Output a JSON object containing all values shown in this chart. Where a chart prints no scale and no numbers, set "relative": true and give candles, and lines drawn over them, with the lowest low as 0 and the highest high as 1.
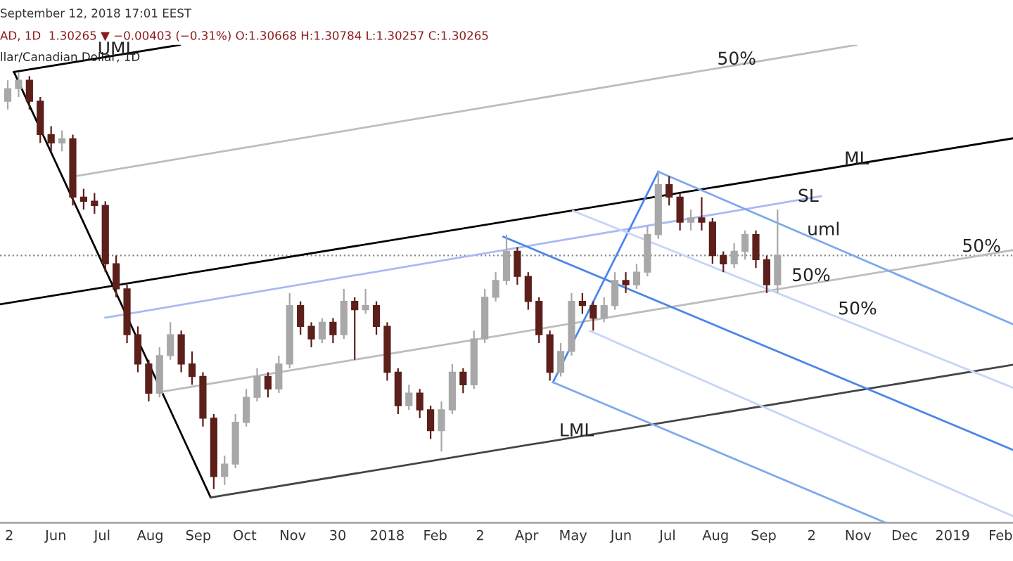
{
  "chart_data": {
    "type": "candlestick",
    "relative": true,
    "title": "AD, 1D  1.30265 ▼ −0.00403 (−0.31%) O:1.30668 H:1.30784 L:1.30257 C:1.30265",
    "subtitle": "llar/Canadian Dollar, 1D",
    "x": [
      "2017-05-01",
      "2017-05-08",
      "2017-05-15",
      "2017-05-22",
      "2017-05-29",
      "2017-06-05",
      "2017-06-12",
      "2017-06-19",
      "2017-06-26",
      "2017-07-03",
      "2017-07-10",
      "2017-07-17",
      "2017-07-24",
      "2017-07-31",
      "2017-08-07",
      "2017-08-14",
      "2017-08-21",
      "2017-08-28",
      "2017-09-04",
      "2017-09-11",
      "2017-09-18",
      "2017-09-25",
      "2017-10-02",
      "2017-10-09",
      "2017-10-16",
      "2017-10-23",
      "2017-10-30",
      "2017-11-06",
      "2017-11-13",
      "2017-11-20",
      "2017-11-27",
      "2017-12-04",
      "2017-12-11",
      "2017-12-18",
      "2017-12-25",
      "2018-01-01",
      "2018-01-08",
      "2018-01-15",
      "2018-01-22",
      "2018-01-29",
      "2018-02-05",
      "2018-02-12",
      "2018-02-19",
      "2018-02-26",
      "2018-03-05",
      "2018-03-12",
      "2018-03-19",
      "2018-03-26",
      "2018-04-02",
      "2018-04-09",
      "2018-04-16",
      "2018-04-23",
      "2018-04-30",
      "2018-05-07",
      "2018-05-14",
      "2018-05-21",
      "2018-05-28",
      "2018-06-04",
      "2018-06-11",
      "2018-06-18",
      "2018-06-25",
      "2018-07-02",
      "2018-07-09",
      "2018-07-16",
      "2018-07-23",
      "2018-07-30",
      "2018-08-06",
      "2018-08-13",
      "2018-08-20",
      "2018-08-27",
      "2018-09-03",
      "2018-09-10"
    ],
    "ohlc": [
      [
        0.93,
        0.98,
        0.91,
        0.96
      ],
      [
        0.96,
        1.0,
        0.94,
        0.98
      ],
      [
        0.98,
        0.99,
        0.91,
        0.93
      ],
      [
        0.93,
        0.94,
        0.83,
        0.85
      ],
      [
        0.85,
        0.87,
        0.81,
        0.83
      ],
      [
        0.83,
        0.86,
        0.81,
        0.84
      ],
      [
        0.84,
        0.85,
        0.68,
        0.7
      ],
      [
        0.7,
        0.72,
        0.67,
        0.69
      ],
      [
        0.69,
        0.71,
        0.66,
        0.68
      ],
      [
        0.68,
        0.69,
        0.52,
        0.54
      ],
      [
        0.54,
        0.56,
        0.46,
        0.48
      ],
      [
        0.48,
        0.49,
        0.35,
        0.37
      ],
      [
        0.37,
        0.39,
        0.28,
        0.3
      ],
      [
        0.3,
        0.31,
        0.21,
        0.23
      ],
      [
        0.23,
        0.34,
        0.22,
        0.32
      ],
      [
        0.32,
        0.4,
        0.31,
        0.37
      ],
      [
        0.37,
        0.38,
        0.28,
        0.3
      ],
      [
        0.3,
        0.33,
        0.25,
        0.27
      ],
      [
        0.27,
        0.28,
        0.15,
        0.17
      ],
      [
        0.17,
        0.18,
        0.0,
        0.03
      ],
      [
        0.03,
        0.08,
        0.01,
        0.06
      ],
      [
        0.06,
        0.18,
        0.05,
        0.16
      ],
      [
        0.16,
        0.24,
        0.15,
        0.22
      ],
      [
        0.22,
        0.29,
        0.21,
        0.27
      ],
      [
        0.27,
        0.28,
        0.22,
        0.24
      ],
      [
        0.24,
        0.32,
        0.23,
        0.3
      ],
      [
        0.3,
        0.47,
        0.29,
        0.44
      ],
      [
        0.44,
        0.45,
        0.37,
        0.39
      ],
      [
        0.39,
        0.4,
        0.34,
        0.36
      ],
      [
        0.36,
        0.41,
        0.35,
        0.4
      ],
      [
        0.4,
        0.41,
        0.35,
        0.37
      ],
      [
        0.37,
        0.48,
        0.36,
        0.45
      ],
      [
        0.45,
        0.46,
        0.31,
        0.43
      ],
      [
        0.43,
        0.48,
        0.42,
        0.44
      ],
      [
        0.44,
        0.45,
        0.37,
        0.39
      ],
      [
        0.39,
        0.4,
        0.26,
        0.28
      ],
      [
        0.28,
        0.29,
        0.18,
        0.2
      ],
      [
        0.2,
        0.25,
        0.19,
        0.23
      ],
      [
        0.23,
        0.24,
        0.17,
        0.19
      ],
      [
        0.19,
        0.2,
        0.12,
        0.14
      ],
      [
        0.14,
        0.21,
        0.09,
        0.19
      ],
      [
        0.19,
        0.3,
        0.18,
        0.28
      ],
      [
        0.28,
        0.29,
        0.23,
        0.25
      ],
      [
        0.25,
        0.38,
        0.24,
        0.36
      ],
      [
        0.36,
        0.48,
        0.35,
        0.46
      ],
      [
        0.46,
        0.52,
        0.45,
        0.5
      ],
      [
        0.5,
        0.61,
        0.49,
        0.57
      ],
      [
        0.57,
        0.58,
        0.49,
        0.51
      ],
      [
        0.51,
        0.52,
        0.43,
        0.45
      ],
      [
        0.45,
        0.46,
        0.35,
        0.37
      ],
      [
        0.37,
        0.38,
        0.26,
        0.28
      ],
      [
        0.28,
        0.35,
        0.27,
        0.33
      ],
      [
        0.33,
        0.47,
        0.32,
        0.45
      ],
      [
        0.45,
        0.47,
        0.42,
        0.44
      ],
      [
        0.44,
        0.45,
        0.38,
        0.41
      ],
      [
        0.41,
        0.46,
        0.4,
        0.44
      ],
      [
        0.44,
        0.52,
        0.43,
        0.5
      ],
      [
        0.5,
        0.52,
        0.47,
        0.49
      ],
      [
        0.49,
        0.54,
        0.48,
        0.52
      ],
      [
        0.52,
        0.63,
        0.51,
        0.61
      ],
      [
        0.61,
        0.76,
        0.6,
        0.73
      ],
      [
        0.73,
        0.75,
        0.68,
        0.7
      ],
      [
        0.7,
        0.71,
        0.62,
        0.64
      ],
      [
        0.64,
        0.67,
        0.62,
        0.65
      ],
      [
        0.65,
        0.7,
        0.62,
        0.64
      ],
      [
        0.64,
        0.65,
        0.54,
        0.56
      ],
      [
        0.56,
        0.57,
        0.52,
        0.54
      ],
      [
        0.54,
        0.59,
        0.53,
        0.57
      ],
      [
        0.57,
        0.62,
        0.55,
        0.61
      ],
      [
        0.61,
        0.62,
        0.53,
        0.55
      ],
      [
        0.55,
        0.56,
        0.47,
        0.49
      ],
      [
        0.49,
        0.67,
        0.47,
        0.56
      ]
    ],
    "colors": [
      "#a8a8a8",
      "#a8a8a8",
      "#5c1f1a",
      "#5c1f1a",
      "#5c1f1a",
      "#a8a8a8",
      "#5c1f1a",
      "#5c1f1a",
      "#5c1f1a",
      "#5c1f1a",
      "#5c1f1a",
      "#5c1f1a",
      "#5c1f1a",
      "#5c1f1a",
      "#a8a8a8",
      "#a8a8a8",
      "#5c1f1a",
      "#5c1f1a",
      "#5c1f1a",
      "#5c1f1a",
      "#a8a8a8",
      "#a8a8a8",
      "#a8a8a8",
      "#a8a8a8",
      "#5c1f1a",
      "#a8a8a8",
      "#a8a8a8",
      "#5c1f1a",
      "#5c1f1a",
      "#a8a8a8",
      "#5c1f1a",
      "#a8a8a8",
      "#5c1f1a",
      "#a8a8a8",
      "#5c1f1a",
      "#5c1f1a",
      "#5c1f1a",
      "#a8a8a8",
      "#5c1f1a",
      "#5c1f1a",
      "#a8a8a8",
      "#a8a8a8",
      "#5c1f1a",
      "#a8a8a8",
      "#a8a8a8",
      "#a8a8a8",
      "#a8a8a8",
      "#5c1f1a",
      "#5c1f1a",
      "#5c1f1a",
      "#5c1f1a",
      "#a8a8a8",
      "#a8a8a8",
      "#5c1f1a",
      "#5c1f1a",
      "#a8a8a8",
      "#a8a8a8",
      "#5c1f1a",
      "#a8a8a8",
      "#a8a8a8",
      "#a8a8a8",
      "#5c1f1a",
      "#5c1f1a",
      "#a8a8a8",
      "#5c1f1a",
      "#5c1f1a",
      "#5c1f1a",
      "#a8a8a8",
      "#a8a8a8",
      "#5c1f1a",
      "#5c1f1a",
      "#a8a8a8"
    ],
    "series": [
      {
        "type": "line",
        "color": "#000000",
        "x": [
          "2017-05-05",
          "2017-09-09"
        ],
        "values": [
          1.0,
          -0.02
        ]
      },
      {
        "type": "line",
        "color": "#000000",
        "x": [
          "2017-05-05",
          "2017-08-20"
        ],
        "values": [
          1.0,
          1.065
        ]
      },
      {
        "type": "line",
        "color": "#000000",
        "x": [
          "2017-04-26",
          "2019-02-09"
        ],
        "values": [
          0.443,
          0.841
        ]
      },
      {
        "type": "line",
        "color": "#444444",
        "x": [
          "2017-09-09",
          "2019-02-09"
        ],
        "values": [
          -0.02,
          0.298
        ]
      },
      {
        "type": "line",
        "color": "#bdbdbd",
        "x": [
          "2017-06-15",
          "2018-10-31"
        ],
        "values": [
          0.751,
          1.065
        ]
      },
      {
        "type": "line",
        "color": "#bdbdbd",
        "x": [
          "2017-08-08",
          "2019-02-09"
        ],
        "values": [
          0.233,
          0.573
        ]
      },
      {
        "type": "line",
        "color": "#a9b9f5",
        "x": [
          "2017-07-03",
          "2018-10-08"
        ],
        "values": [
          0.411,
          0.702
        ]
      },
      {
        "type": "line",
        "color": "#4a86e8",
        "x": [
          "2018-04-18",
          "2018-06-25"
        ],
        "values": [
          0.256,
          0.761
        ]
      },
      {
        "type": "line",
        "color": "#4a86e8",
        "x": [
          "2018-03-17",
          "2019-02-09"
        ],
        "values": [
          0.605,
          0.094
        ]
      },
      {
        "type": "line",
        "color": "#7fa8ee",
        "x": [
          "2018-06-25",
          "2019-02-09"
        ],
        "values": [
          0.761,
          0.395
        ]
      },
      {
        "type": "line",
        "color": "#7fa8ee",
        "x": [
          "2018-04-18",
          "2018-11-19"
        ],
        "values": [
          0.256,
          -0.081
        ]
      },
      {
        "type": "line",
        "color": "#c5d5f7",
        "x": [
          "2018-05-01",
          "2019-02-09"
        ],
        "values": [
          0.667,
          0.243
        ]
      },
      {
        "type": "line",
        "color": "#c5d5f7",
        "x": [
          "2018-05-12",
          "2019-02-09"
        ],
        "values": [
          0.379,
          -0.065
        ]
      }
    ],
    "ref_lines": [
      {
        "axis": "y",
        "value": 0.56,
        "color": "#888888",
        "line_style": "dotted"
      }
    ],
    "annotations": [
      "September 12, 2018 17:01 EEST",
      {
        "text": "UML",
        "x": "2017-06-28",
        "y": 1.033
      },
      {
        "text": "50%",
        "x": "2018-08-02",
        "y": 1.009
      },
      {
        "text": "ML",
        "x": "2018-10-23",
        "y": 0.77
      },
      {
        "text": "SL",
        "x": "2018-09-23",
        "y": 0.68
      },
      {
        "text": "uml",
        "x": "2018-09-29",
        "y": 0.6
      },
      {
        "text": "50%",
        "x": "2019-01-07",
        "y": 0.56
      },
      {
        "text": "50%",
        "x": "2018-09-19",
        "y": 0.49
      },
      {
        "text": "50%",
        "x": "2018-10-19",
        "y": 0.41
      },
      {
        "text": "LML",
        "x": "2018-04-22",
        "y": 0.118
      }
    ],
    "xlim": [
      "2017-04-26",
      "2019-02-09"
    ],
    "xticks": [
      {
        "value": "2017-05-02",
        "label": "2"
      },
      {
        "value": "2017-06-01",
        "label": "Jun"
      },
      {
        "value": "2017-07-01",
        "label": "Jul"
      },
      {
        "value": "2017-08-01",
        "label": "Aug"
      },
      {
        "value": "2017-09-01",
        "label": "Sep"
      },
      {
        "value": "2017-10-01",
        "label": "Oct"
      },
      {
        "value": "2017-11-01",
        "label": "Nov"
      },
      {
        "value": "2017-11-30",
        "label": "30"
      },
      {
        "value": "2018-01-01",
        "label": "2018"
      },
      {
        "value": "2018-02-01",
        "label": "Feb"
      },
      {
        "value": "2018-03-02",
        "label": "2"
      },
      {
        "value": "2018-04-01",
        "label": "Apr"
      },
      {
        "value": "2018-05-01",
        "label": "May"
      },
      {
        "value": "2018-06-01",
        "label": "Jun"
      },
      {
        "value": "2018-07-01",
        "label": "Jul"
      },
      {
        "value": "2018-08-01",
        "label": "Aug"
      },
      {
        "value": "2018-09-01",
        "label": "Sep"
      },
      {
        "value": "2018-10-02",
        "label": "2"
      },
      {
        "value": "2018-11-01",
        "label": "Nov"
      },
      {
        "value": "2018-12-01",
        "label": "Dec"
      },
      {
        "value": "2019-01-01",
        "label": "2019"
      },
      {
        "value": "2019-02-01",
        "label": "Feb"
      }
    ],
    "tick_labels": "x",
    "grid": false,
    "legend": false
  }
}
